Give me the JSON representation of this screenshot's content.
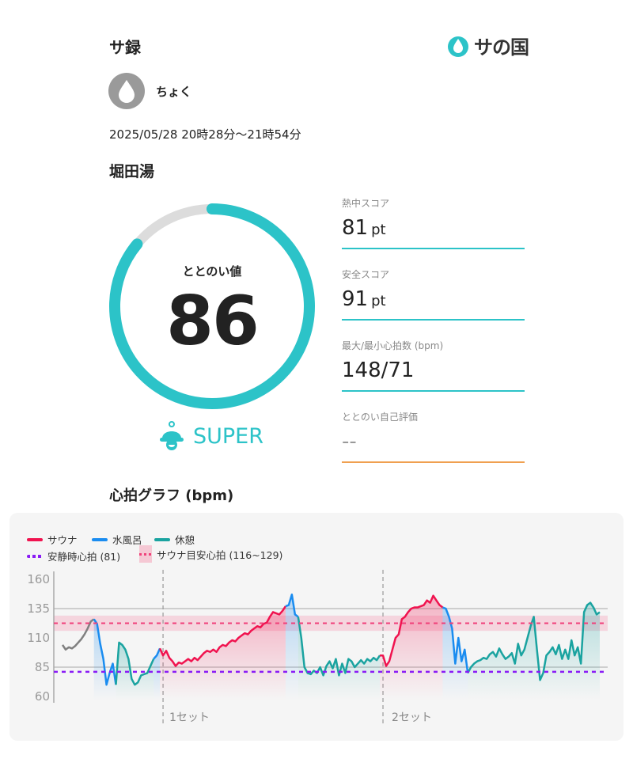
{
  "header": {
    "title": "サ録",
    "logo_text": "サの国"
  },
  "user": {
    "name": "ちょく"
  },
  "session": {
    "datetime": "2025/05/28 20時28分〜21時54分",
    "facility": "堀田湯"
  },
  "totonoi": {
    "label": "ととのい値",
    "value": "86",
    "percent": 86,
    "rank": "SUPER"
  },
  "metrics": [
    {
      "label": "熱中スコア",
      "value": "81",
      "unit": "pt"
    },
    {
      "label": "安全スコア",
      "value": "91",
      "unit": "pt"
    },
    {
      "label": "最大/最小心拍数 (bpm)",
      "value": "148/71",
      "unit": ""
    },
    {
      "label": "ととのい自己評価",
      "value": "--",
      "unit": ""
    }
  ],
  "colors": {
    "accent": "#2cc3c8",
    "sauna": "#f0134f",
    "water": "#1a8cf0",
    "rest": "#1aa3a0",
    "pre": "#808080",
    "resting": "#8a1cf5",
    "self_eval_line": "#f0a050"
  },
  "graph": {
    "title": "心拍グラフ (bpm)"
  },
  "chart_data": {
    "type": "line",
    "ylabel": "bpm",
    "ylim": [
      60,
      160
    ],
    "yticks": [
      "160",
      "135",
      "110",
      "85",
      "60"
    ],
    "legend": {
      "sauna": "サウナ",
      "water": "水風呂",
      "rest": "休憩",
      "resting_hr": "安静時心拍 (81)",
      "target_hr": "サウナ目安心拍 (116~129)"
    },
    "resting_hr": 81,
    "target_range": [
      116,
      129
    ],
    "set_labels": [
      "1セット",
      "2セット"
    ],
    "segments": [
      {
        "type": "pre",
        "values": [
          104,
          100,
          102,
          101,
          103,
          106,
          109,
          113,
          118,
          124,
          126
        ]
      },
      {
        "type": "water",
        "values": [
          122,
          105,
          92,
          70,
          80,
          88,
          70
        ]
      },
      {
        "type": "rest",
        "values": [
          106,
          104,
          100,
          92,
          75,
          70,
          72,
          78,
          79,
          80,
          86,
          92
        ]
      },
      {
        "type": "water",
        "values": [
          95,
          101
        ]
      },
      {
        "type": "sauna",
        "set": 1,
        "values": [
          95,
          99,
          93,
          90,
          86,
          89,
          88,
          90,
          92,
          90,
          93,
          91,
          94,
          97,
          99,
          98,
          100,
          98,
          102,
          104,
          103,
          106,
          108,
          107,
          110,
          112,
          114,
          113,
          116,
          118,
          120,
          119,
          122,
          123,
          128,
          132,
          131,
          130,
          133,
          137
        ]
      },
      {
        "type": "water",
        "values": [
          138,
          147,
          130,
          128
        ]
      },
      {
        "type": "rest",
        "values": [
          110,
          85,
          80,
          79,
          82,
          80,
          85,
          78,
          86,
          90,
          84,
          92,
          78,
          88,
          80,
          92,
          90,
          85,
          88,
          91,
          88,
          92,
          90,
          93,
          91,
          95
        ]
      },
      {
        "type": "sauna",
        "set": 2,
        "values": [
          95,
          86,
          90,
          100,
          110,
          113,
          126,
          128,
          132,
          135,
          136,
          136,
          137,
          138,
          142,
          140,
          146,
          142,
          138,
          136
        ]
      },
      {
        "type": "water",
        "values": [
          135,
          128,
          118,
          88,
          110,
          90,
          100,
          80
        ]
      },
      {
        "type": "rest",
        "values": [
          85,
          88,
          90,
          91,
          93,
          92,
          96,
          98,
          94,
          101,
          96,
          92,
          94,
          97,
          88,
          105,
          95,
          100,
          110,
          120,
          128,
          100,
          74,
          80,
          95,
          98,
          102,
          96,
          104,
          92,
          100,
          92,
          108,
          95,
          102,
          88,
          132,
          138,
          140,
          136,
          130,
          132
        ]
      }
    ]
  }
}
